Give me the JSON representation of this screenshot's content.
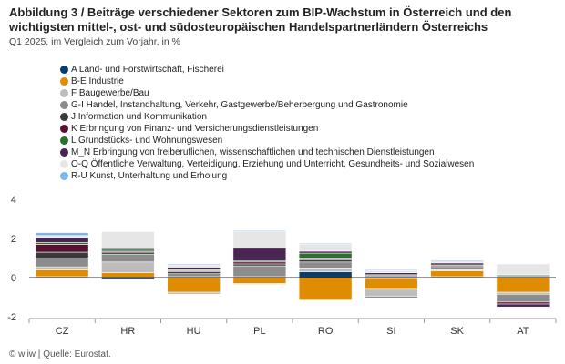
{
  "header": {
    "title": "Abbildung 3 / Beiträge verschiedener Sektoren zum BIP-Wachstum in Österreich und den wichtigsten mittel-, ost- und südosteuropäischen Handelspartnerländern Österreichs",
    "subtitle": "Q1 2025, im Vergleich zum Vorjahr, in %"
  },
  "footer": {
    "source": "© wiiw | Quelle: Eurostat."
  },
  "chart_data": {
    "type": "bar",
    "stacked": true,
    "title": "",
    "xlabel": "",
    "ylabel": "",
    "ylim": [
      -2,
      4
    ],
    "yticks": [
      -2,
      0,
      2,
      4
    ],
    "grid": false,
    "legend_position": "top-left",
    "categories": [
      "CZ",
      "HR",
      "HU",
      "PL",
      "RO",
      "SI",
      "SK",
      "AT"
    ],
    "series": [
      {
        "name": "A Land- und Forstwirtschaft, Fischerei",
        "color": "#0b3d6b",
        "values": [
          0.05,
          -0.1,
          0.05,
          0.05,
          0.3,
          -0.05,
          0.05,
          0.05
        ]
      },
      {
        "name": "B-E Industrie",
        "color": "#e08c00",
        "values": [
          0.35,
          0.25,
          -0.75,
          -0.3,
          -1.15,
          -0.55,
          0.3,
          -0.75
        ]
      },
      {
        "name": "F Baugewerbe/Bau",
        "color": "#bdbdbd",
        "values": [
          0.15,
          0.55,
          -0.1,
          -0.05,
          0.15,
          -0.35,
          0.05,
          -0.1
        ]
      },
      {
        "name": "G-I Handel, Instandhaltung, Verkehr, Gastgewerbe/Beherbergung und Gastronomie",
        "color": "#8c8c8c",
        "values": [
          0.45,
          0.4,
          0.15,
          0.55,
          0.35,
          -0.1,
          0.1,
          -0.4
        ]
      },
      {
        "name": "J Information und Kommunikation",
        "color": "#3a3a3a",
        "values": [
          0.3,
          0.1,
          0.1,
          0.1,
          0.1,
          0.05,
          0.05,
          0.05
        ]
      },
      {
        "name": "K Erbringung von Finanz- und Versicherungsdienstleistungen",
        "color": "#5a1030",
        "values": [
          0.4,
          0.05,
          0.05,
          0.1,
          0.05,
          0.05,
          0.05,
          -0.1
        ]
      },
      {
        "name": "L Grundstücks- und Wohnungswesen",
        "color": "#2e6e2e",
        "values": [
          0.1,
          0.1,
          0.05,
          0.05,
          0.3,
          0.05,
          0.05,
          0.05
        ]
      },
      {
        "name": "M_N Erbringung von freiberuflichen, wissenschaftlichen und technischen Dienstleistungen",
        "color": "#4a2452",
        "values": [
          0.25,
          0.05,
          0.1,
          0.65,
          0.1,
          0.1,
          0.1,
          -0.15
        ]
      },
      {
        "name": "O-Q Öffentliche Verwaltung, Verteidigung, Erziehung und Unterricht, Gesundheits- und Sozialwesen",
        "color": "#e6e6e6",
        "values": [
          0.1,
          0.85,
          0.15,
          0.85,
          0.35,
          0.1,
          0.1,
          0.55
        ]
      },
      {
        "name": "R-U Kunst, Unterhaltung und Erholung",
        "color": "#7eb6e6",
        "values": [
          0.15,
          0.0,
          0.05,
          0.05,
          0.05,
          0.05,
          0.05,
          0.0
        ]
      }
    ]
  }
}
